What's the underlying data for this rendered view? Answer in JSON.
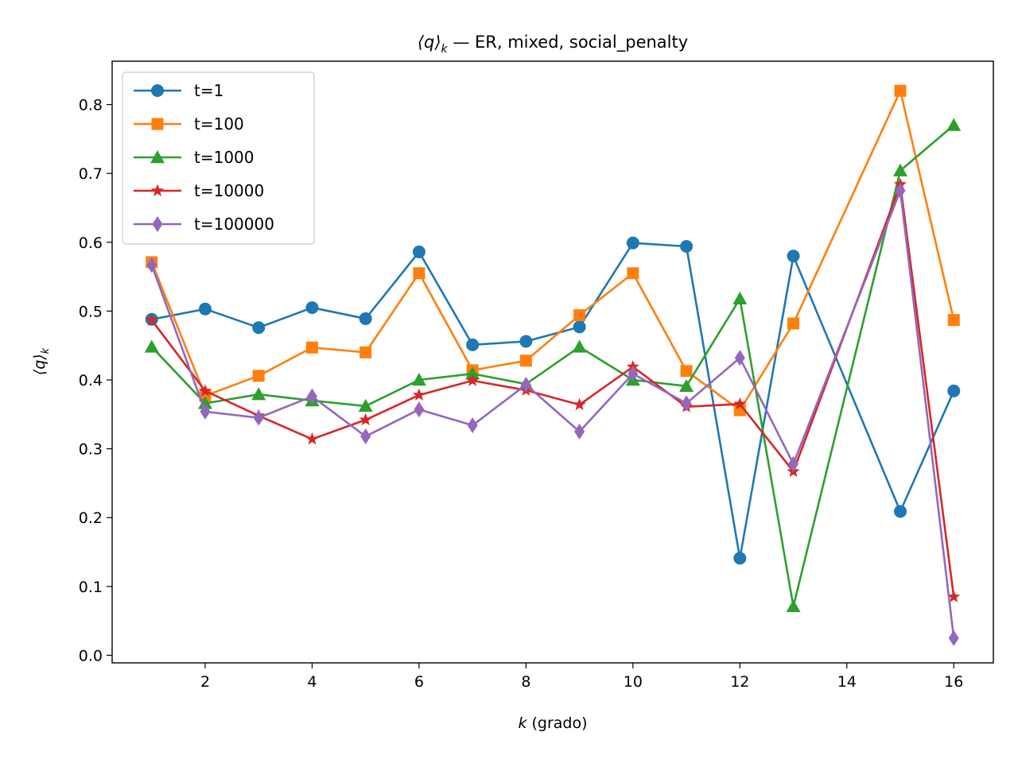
{
  "chart_data": {
    "type": "line",
    "title": "⟨q⟩k — ER, mixed, social_penalty",
    "title_main": "⟨q⟩",
    "title_sub": "k",
    "title_rest": " — ER, mixed, social_penalty",
    "xlabel": "k (grado)",
    "xlabel_var": "k",
    "xlabel_rest": " (grado)",
    "ylabel": "⟨q⟩k",
    "ylabel_main": "⟨q⟩",
    "ylabel_sub": "k",
    "xlim": [
      0.26,
      16.74
    ],
    "ylim": [
      -0.011,
      0.863
    ],
    "xticks": [
      2,
      4,
      6,
      8,
      10,
      12,
      14,
      16
    ],
    "yticks": [
      0.0,
      0.1,
      0.2,
      0.3,
      0.4,
      0.5,
      0.6,
      0.7,
      0.8
    ],
    "ytick_labels": [
      "0.0",
      "0.1",
      "0.2",
      "0.3",
      "0.4",
      "0.5",
      "0.6",
      "0.7",
      "0.8"
    ],
    "grid": false,
    "legend_position": "upper-left",
    "x": [
      1,
      2,
      3,
      4,
      5,
      6,
      7,
      8,
      9,
      10,
      11,
      12,
      13,
      15,
      16
    ],
    "series": [
      {
        "name": "t=1",
        "color": "#1f77b4",
        "marker": "circle",
        "values": [
          0.488,
          0.503,
          0.476,
          0.505,
          0.489,
          0.586,
          0.451,
          0.456,
          0.477,
          0.599,
          0.594,
          0.141,
          0.58,
          0.209,
          0.384
        ]
      },
      {
        "name": "t=100",
        "color": "#ff7f0e",
        "marker": "square",
        "values": [
          0.571,
          0.377,
          0.406,
          0.447,
          0.44,
          0.555,
          0.414,
          0.428,
          0.494,
          0.555,
          0.413,
          0.356,
          0.482,
          0.82,
          0.487
        ]
      },
      {
        "name": "t=1000",
        "color": "#2ca02c",
        "marker": "triangle",
        "values": [
          0.448,
          0.366,
          0.379,
          0.37,
          0.362,
          0.4,
          0.409,
          0.394,
          0.448,
          0.4,
          0.391,
          0.518,
          0.071,
          0.704,
          0.77
        ]
      },
      {
        "name": "t=10000",
        "color": "#d62728",
        "marker": "star",
        "values": [
          0.487,
          0.384,
          0.348,
          0.314,
          0.342,
          0.378,
          0.399,
          0.385,
          0.364,
          0.419,
          0.361,
          0.365,
          0.267,
          0.684,
          0.085
        ]
      },
      {
        "name": "t=100000",
        "color": "#9467bd",
        "marker": "diamond",
        "values": [
          0.567,
          0.354,
          0.345,
          0.376,
          0.318,
          0.357,
          0.334,
          0.393,
          0.325,
          0.409,
          0.366,
          0.432,
          0.278,
          0.675,
          0.025
        ]
      }
    ]
  }
}
